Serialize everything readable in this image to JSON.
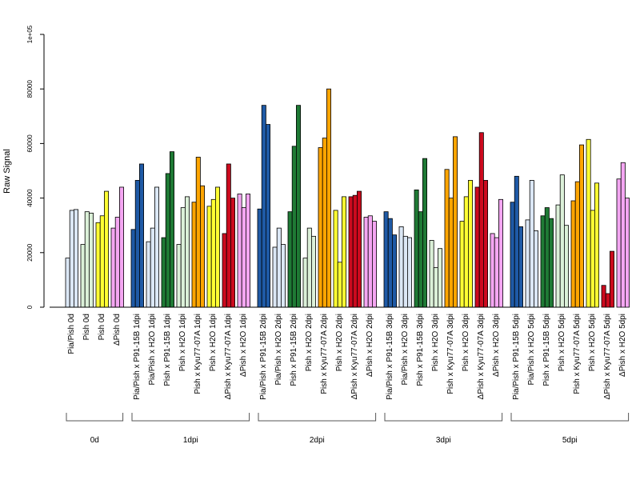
{
  "colors": {
    "Pia/Pish": "#dbe7f5",
    "Pia/Pish x P91-15B": "#1f5aa6",
    "Pia/Pish x H2O": "#dbe7f5",
    "Pish x P91-15B": "#1f7a35",
    "Pish": "#dbf0d8",
    "Pish x H2O": "#dbf0d8",
    "Pish x Kyu77-07A": "#ffa500",
    "ΔPish x Kyu77-07A": "#cc0a1e",
    "ΔPish": "#f4a6f2",
    "ΔPish x H2O": "#f4a6f2",
    "Pish_0d_yellow": "#ffff33",
    "Pish x H2O_yellow": "#ffff33"
  },
  "chart_data": {
    "type": "bar",
    "ylabel": "Raw Signal",
    "ylim": [
      0,
      100000
    ],
    "yticks": [
      "0",
      "20000",
      "40000",
      "60000",
      "80000",
      "1e+05"
    ],
    "groups": [
      {
        "label": "0d",
        "categories": [
          {
            "name": "Pia/Pish 0d",
            "color": "#dbe7f5",
            "values": [
              18000,
              35500,
              35800
            ]
          },
          {
            "name": "Pish 0d",
            "color": "#dbf0d8",
            "values": [
              23000,
              35000,
              34500
            ]
          },
          {
            "name": "Pish 0d",
            "color": "#ffff33",
            "values": [
              31000,
              33500,
              42500
            ]
          },
          {
            "name": "ΔPish 0d",
            "color": "#f4a6f2",
            "values": [
              29000,
              33000,
              44000
            ]
          }
        ]
      },
      {
        "label": "1dpi",
        "categories": [
          {
            "name": "Pia/Pish x P91-15B 1dpi",
            "color": "#1f5aa6",
            "values": [
              28500,
              46500,
              52500
            ]
          },
          {
            "name": "Pia/Pish x H2O 1dpi",
            "color": "#dbe7f5",
            "values": [
              24000,
              29000,
              44000
            ]
          },
          {
            "name": "Pish x P91-15B 1dpi",
            "color": "#1f7a35",
            "values": [
              25500,
              49000,
              57000
            ]
          },
          {
            "name": "Pish x H2O 1dpi",
            "color": "#dbf0d8",
            "values": [
              23000,
              36500,
              40500
            ]
          },
          {
            "name": "Pish x Kyu77-07A 1dpi",
            "color": "#ffa500",
            "values": [
              38500,
              55000,
              44500
            ]
          },
          {
            "name": "Pish x H2O 1dpi",
            "color": "#ffff33",
            "values": [
              37000,
              39500,
              44000
            ]
          },
          {
            "name": "ΔPish x Kyu77-07A 1dpi",
            "color": "#cc0a1e",
            "values": [
              27000,
              52500,
              40000
            ]
          },
          {
            "name": "ΔPish x H2O 1dpi",
            "color": "#f4a6f2",
            "values": [
              41500,
              36500,
              41500
            ]
          }
        ]
      },
      {
        "label": "2dpi",
        "categories": [
          {
            "name": "Pia/Pish x P91-15B 2dpi",
            "color": "#1f5aa6",
            "values": [
              36000,
              74000,
              67000
            ]
          },
          {
            "name": "Pia/Pish x H2O 2dpi",
            "color": "#dbe7f5",
            "values": [
              22000,
              29000,
              23000
            ]
          },
          {
            "name": "Pish x P91-15B 2dpi",
            "color": "#1f7a35",
            "values": [
              35000,
              59000,
              74000
            ]
          },
          {
            "name": "Pish x H2O 2dpi",
            "color": "#dbf0d8",
            "values": [
              18000,
              29000,
              26000
            ]
          },
          {
            "name": "Pish x Kyu77-07A 2dpi",
            "color": "#ffa500",
            "values": [
              58500,
              62000,
              80000
            ]
          },
          {
            "name": "Pish x H2O 2dpi",
            "color": "#ffff33",
            "values": [
              35500,
              16500,
              40500
            ]
          },
          {
            "name": "ΔPish x Kyu77-07A 2dpi",
            "color": "#cc0a1e",
            "values": [
              40500,
              41000,
              42500
            ]
          },
          {
            "name": "ΔPish x H2O 2dpi",
            "color": "#f4a6f2",
            "values": [
              33000,
              33500,
              31500
            ]
          }
        ]
      },
      {
        "label": "3dpi",
        "categories": [
          {
            "name": "Pia/Pish x P91-15B 3dpi",
            "color": "#1f5aa6",
            "values": [
              35000,
              32500,
              26500
            ]
          },
          {
            "name": "Pia/Pish x H2O 3dpi",
            "color": "#dbe7f5",
            "values": [
              29500,
              26000,
              25500
            ]
          },
          {
            "name": "Pish x P91-15B 3dpi",
            "color": "#1f7a35",
            "values": [
              43000,
              35000,
              54500
            ]
          },
          {
            "name": "Pish x H2O 3dpi",
            "color": "#dbf0d8",
            "values": [
              24500,
              14500,
              21500
            ]
          },
          {
            "name": "Pish x Kyu77-07A 3dpi",
            "color": "#ffa500",
            "values": [
              50500,
              40000,
              62500
            ]
          },
          {
            "name": "Pish x H2O 3dpi",
            "color": "#ffff33",
            "values": [
              31500,
              40500,
              46500
            ]
          },
          {
            "name": "ΔPish x Kyu77-07A 3dpi",
            "color": "#cc0a1e",
            "values": [
              44000,
              64000,
              46500
            ]
          },
          {
            "name": "ΔPish x H2O 3dpi",
            "color": "#f4a6f2",
            "values": [
              27000,
              25500,
              39500
            ]
          }
        ]
      },
      {
        "label": "5dpi",
        "categories": [
          {
            "name": "Pia/Pish x P91-15B 5dpi",
            "color": "#1f5aa6",
            "values": [
              38500,
              48000,
              29500
            ]
          },
          {
            "name": "Pia/Pish x H2O 5dpi",
            "color": "#dbe7f5",
            "values": [
              32000,
              46500,
              28000
            ]
          },
          {
            "name": "Pish x P91-15B 5dpi",
            "color": "#1f7a35",
            "values": [
              33500,
              36500,
              32500
            ]
          },
          {
            "name": "Pish x H2O 5dpi",
            "color": "#dbf0d8",
            "values": [
              37500,
              48500,
              30000
            ]
          },
          {
            "name": "Pish x Kyu77-07A 5dpi",
            "color": "#ffa500",
            "values": [
              39000,
              46000,
              59500
            ]
          },
          {
            "name": "Pish x H2O 5dpi",
            "color": "#ffff33",
            "values": [
              61500,
              35500,
              45500
            ]
          },
          {
            "name": "ΔPish x Kyu77-07A 5dpi",
            "color": "#cc0a1e",
            "values": [
              8000,
              5000,
              20500
            ]
          },
          {
            "name": "ΔPish x H2O 5dpi",
            "color": "#f4a6f2",
            "values": [
              47000,
              53000,
              40000
            ]
          }
        ]
      }
    ]
  }
}
